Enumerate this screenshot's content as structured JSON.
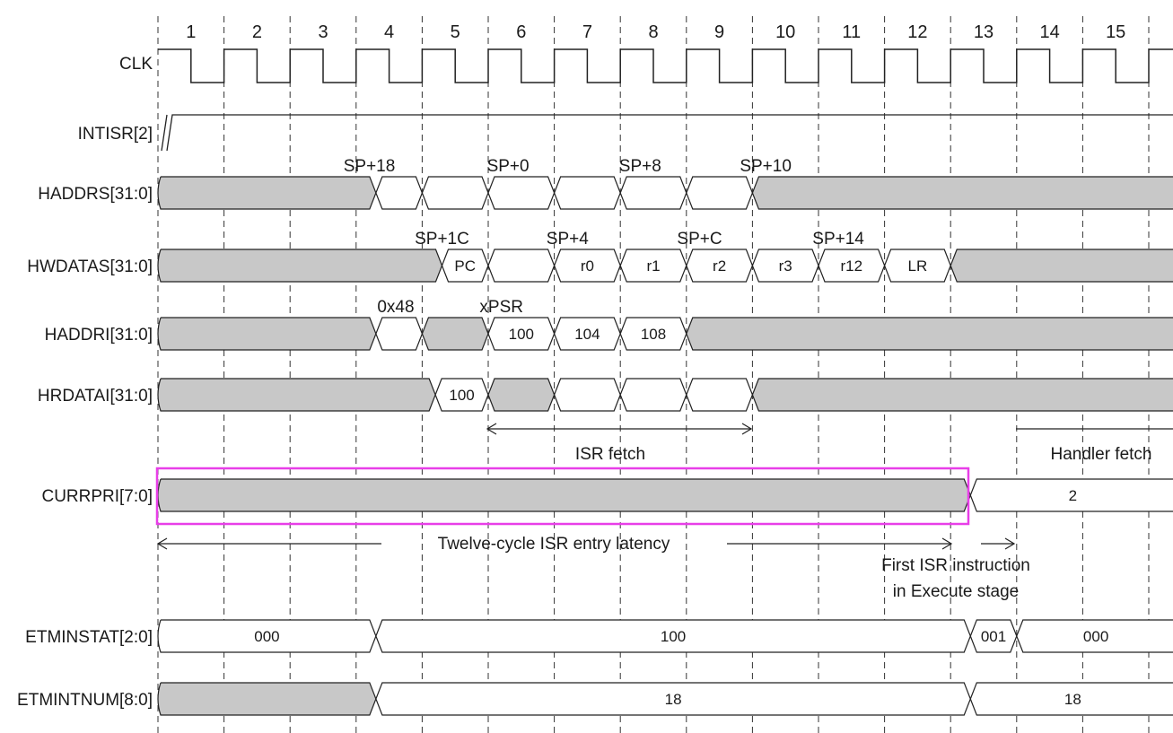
{
  "cycles": [
    "1",
    "2",
    "3",
    "4",
    "5",
    "6",
    "7",
    "8",
    "9",
    "10",
    "11",
    "12",
    "13",
    "14",
    "15"
  ],
  "signals": [
    {
      "name": "CLK"
    },
    {
      "name": "INTISR[2]"
    },
    {
      "name": "HADDRS[31:0]"
    },
    {
      "name": "HWDATAS[31:0]"
    },
    {
      "name": "HADDRI[31:0]"
    },
    {
      "name": "HRDATAI[31:0]"
    },
    {
      "name": "CURRPRI[7:0]"
    },
    {
      "name": "ETMINSTAT[2:0]"
    },
    {
      "name": "ETMINTNUM[8:0]"
    }
  ],
  "buses": {
    "HADDRS": [
      {
        "from": 0,
        "to": 3.3,
        "v": ""
      },
      {
        "from": 3.3,
        "to": 4.0,
        "v": ""
      },
      {
        "from": 4.0,
        "to": 5.0,
        "v": ""
      },
      {
        "from": 5.0,
        "to": 6.0,
        "v": ""
      },
      {
        "from": 6.0,
        "to": 7.0,
        "v": ""
      },
      {
        "from": 7.0,
        "to": 8.0,
        "v": ""
      },
      {
        "from": 8.0,
        "to": 9.0,
        "v": ""
      },
      {
        "from": 9.0,
        "to": 15.4,
        "v": ""
      }
    ],
    "HWDATAS": [
      {
        "from": 0,
        "to": 4.3,
        "v": ""
      },
      {
        "from": 4.3,
        "to": 5.0,
        "v": "PC"
      },
      {
        "from": 5.0,
        "to": 6.0,
        "v": ""
      },
      {
        "from": 6.0,
        "to": 7.0,
        "v": "r0"
      },
      {
        "from": 7.0,
        "to": 8.0,
        "v": "r1"
      },
      {
        "from": 8.0,
        "to": 9.0,
        "v": "r2"
      },
      {
        "from": 9.0,
        "to": 10.0,
        "v": "r3"
      },
      {
        "from": 10.0,
        "to": 11.0,
        "v": "r12"
      },
      {
        "from": 11.0,
        "to": 12.0,
        "v": "LR"
      },
      {
        "from": 12.0,
        "to": 15.4,
        "v": ""
      }
    ],
    "HADDRI": [
      {
        "from": 0,
        "to": 3.3,
        "v": ""
      },
      {
        "from": 3.3,
        "to": 4.0,
        "v": ""
      },
      {
        "from": 4.0,
        "to": 5.0,
        "v": ""
      },
      {
        "from": 5.0,
        "to": 6.0,
        "v": "100"
      },
      {
        "from": 6.0,
        "to": 7.0,
        "v": "104"
      },
      {
        "from": 7.0,
        "to": 8.0,
        "v": "108"
      },
      {
        "from": 8.0,
        "to": 15.4,
        "v": ""
      }
    ],
    "HRDATAI": [
      {
        "from": 0,
        "to": 4.2,
        "v": ""
      },
      {
        "from": 4.2,
        "to": 5.0,
        "v": "100"
      },
      {
        "from": 5.0,
        "to": 6.0,
        "v": ""
      },
      {
        "from": 6.0,
        "to": 7.0,
        "v": ""
      },
      {
        "from": 7.0,
        "to": 8.0,
        "v": ""
      },
      {
        "from": 8.0,
        "to": 9.0,
        "v": ""
      },
      {
        "from": 9.0,
        "to": 15.4,
        "v": ""
      }
    ],
    "CURRPRI": [
      {
        "from": 0,
        "to": 12.3,
        "v": ""
      },
      {
        "from": 12.3,
        "to": 15.4,
        "v": "2"
      }
    ],
    "ETMINSTAT": [
      {
        "from": 0,
        "to": 3.3,
        "v": "000"
      },
      {
        "from": 3.3,
        "to": 12.3,
        "v": "100"
      },
      {
        "from": 12.3,
        "to": 13.0,
        "v": "001"
      },
      {
        "from": 13.0,
        "to": 15.4,
        "v": "000"
      }
    ],
    "ETMINTNUM": [
      {
        "from": 0,
        "to": 3.3,
        "v": ""
      },
      {
        "from": 3.3,
        "to": 12.3,
        "v": "18"
      },
      {
        "from": 12.3,
        "to": 15.4,
        "v": "18"
      }
    ]
  },
  "labels_above": {
    "HADDRS": [
      "SP+18",
      "SP+0",
      "SP+8",
      "SP+10"
    ],
    "HWDATAS": [
      "SP+1C",
      "SP+4",
      "SP+C",
      "SP+14"
    ],
    "HADDRI": [
      "0x48",
      "xPSR"
    ]
  },
  "annotations": {
    "isr_fetch": "ISR fetch",
    "handler_fetch": "Handler fetch",
    "latency": "Twelve-cycle ISR entry latency",
    "first_isr_1": "First ISR instruction",
    "first_isr_2": "in Execute stage"
  },
  "colors": {
    "bus_fill": "#c8c8c8",
    "line": "#222222",
    "grid": "#333333",
    "highlight": "#e83ee8"
  }
}
